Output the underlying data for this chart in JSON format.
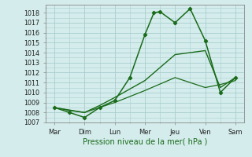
{
  "background_color": "#d4ecec",
  "grid_color": "#aacece",
  "line_color": "#1a6b1a",
  "xlabel": "Pression niveau de la mer( hPa )",
  "ylim": [
    1007,
    1018.8
  ],
  "yticks": [
    1007,
    1008,
    1009,
    1010,
    1011,
    1012,
    1013,
    1014,
    1015,
    1016,
    1017,
    1018
  ],
  "day_labels": [
    "Mar",
    "Dim",
    "Lun",
    "Mer",
    "Jeu",
    "Ven",
    "Sam"
  ],
  "day_positions": [
    0,
    1,
    2,
    3,
    4,
    5,
    6
  ],
  "line1_x": [
    0,
    0.5,
    1.0,
    1.5,
    2.0,
    2.5,
    3.0,
    3.3,
    3.5,
    4.0,
    4.5,
    5.0,
    5.5,
    6.0
  ],
  "line1_y": [
    1008.5,
    1008.0,
    1007.5,
    1008.5,
    1009.2,
    1011.5,
    1015.8,
    1018.0,
    1018.1,
    1017.0,
    1018.4,
    1015.2,
    1010.0,
    1011.5
  ],
  "line2_x": [
    0,
    0.5,
    1.0,
    1.5,
    2.0,
    3.0,
    4.0,
    5.0,
    5.5,
    6.0
  ],
  "line2_y": [
    1008.5,
    1008.2,
    1008.0,
    1008.7,
    1009.5,
    1011.2,
    1013.8,
    1014.2,
    1010.5,
    1011.5
  ],
  "line3_x": [
    0,
    1,
    2,
    3,
    4,
    5,
    5.5,
    6.0
  ],
  "line3_y": [
    1008.5,
    1008.0,
    1009.0,
    1010.2,
    1011.5,
    1010.5,
    1010.8,
    1011.2
  ]
}
